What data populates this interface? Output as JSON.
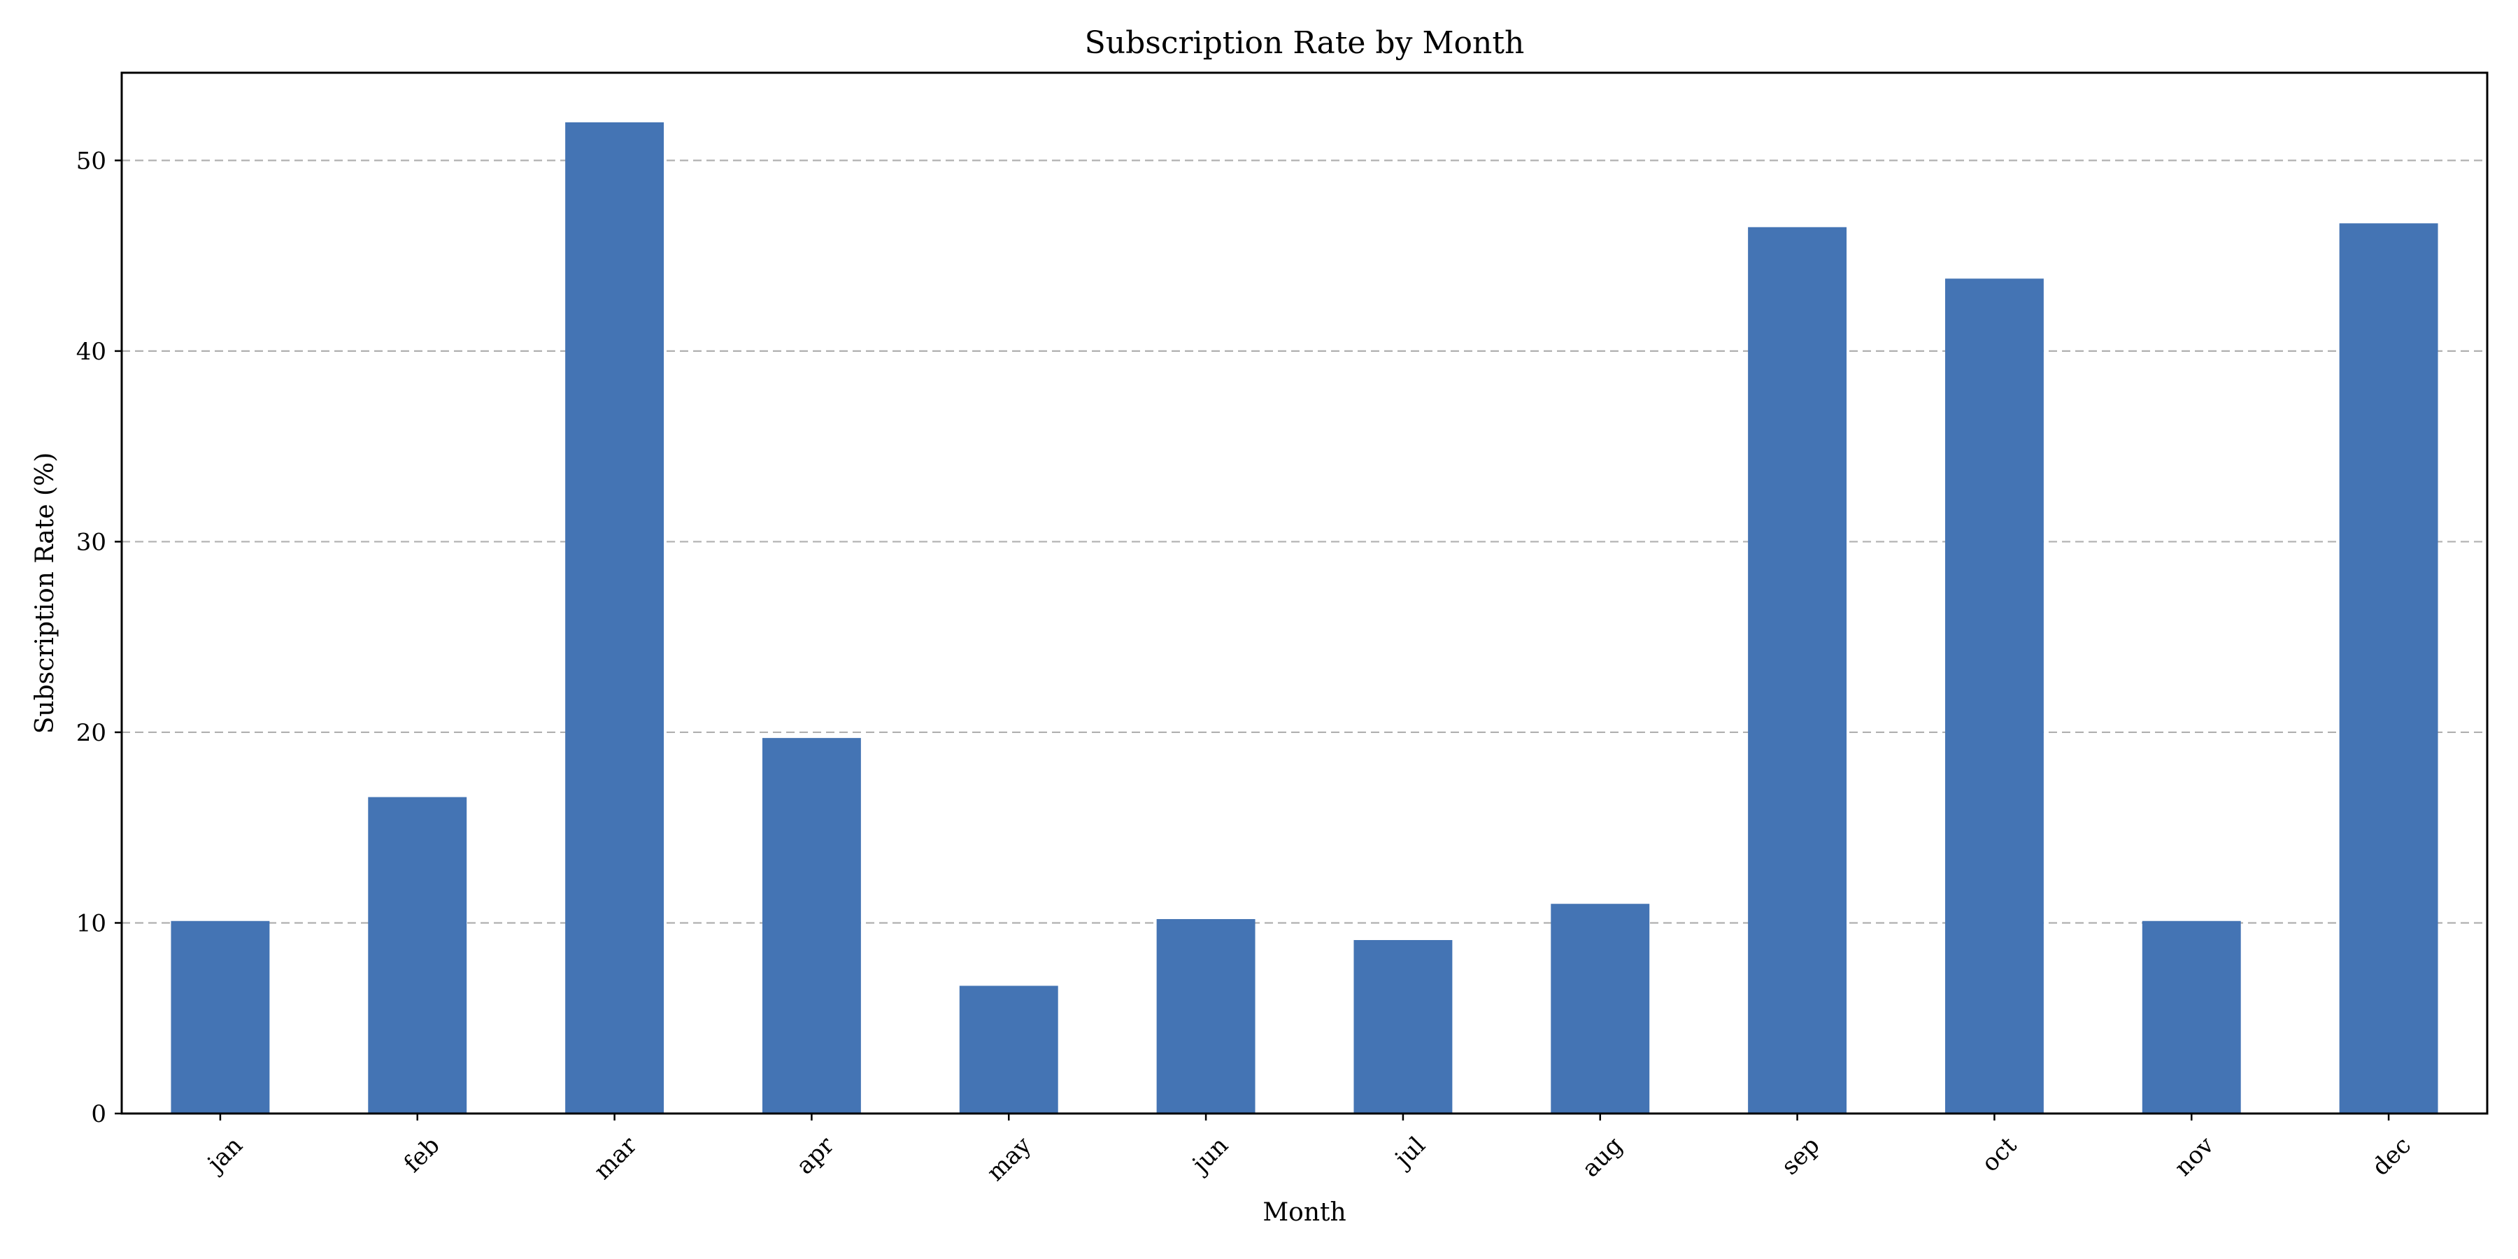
{
  "chart_data": {
    "type": "bar",
    "title": "Subscription Rate by Month",
    "xlabel": "Month",
    "ylabel": "Subscription Rate (%)",
    "categories": [
      "jan",
      "feb",
      "mar",
      "apr",
      "may",
      "jun",
      "jul",
      "aug",
      "sep",
      "oct",
      "nov",
      "dec"
    ],
    "values": [
      10.1,
      16.6,
      52.0,
      19.7,
      6.7,
      10.2,
      9.1,
      11.0,
      46.5,
      43.8,
      10.1,
      46.7
    ],
    "ylim": [
      0,
      54.6
    ],
    "yticks": [
      0,
      10,
      20,
      30,
      40,
      50
    ],
    "grid": "horizontal dashed",
    "legend": "none",
    "colors": {
      "bar": "#4474b4",
      "grid": "#b0b0b0",
      "axis": "#000000",
      "background": "#ffffff"
    }
  }
}
